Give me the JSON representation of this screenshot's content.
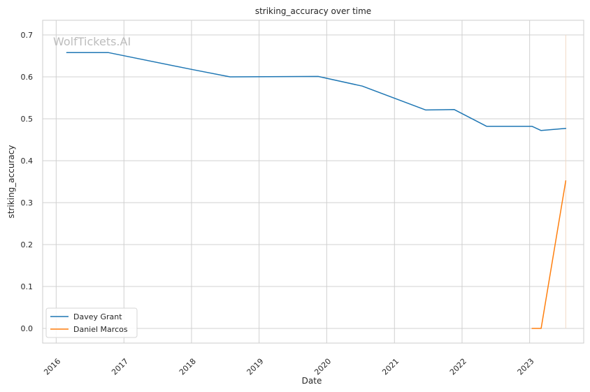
{
  "chart_data": {
    "type": "line",
    "title": "striking_accuracy over time",
    "xlabel": "Date",
    "ylabel": "striking_accuracy",
    "watermark": "WolfTickets.AI",
    "x_ticks": [
      "2016",
      "2017",
      "2018",
      "2019",
      "2020",
      "2021",
      "2022",
      "2023"
    ],
    "y_ticks": [
      "0.0",
      "0.1",
      "0.2",
      "0.3",
      "0.4",
      "0.5",
      "0.6",
      "0.7"
    ],
    "xlim": [
      "2015-10-20",
      "2023-10-20"
    ],
    "ylim": [
      -0.035,
      0.735
    ],
    "grid": true,
    "legend_position": "lower-left",
    "series": [
      {
        "name": "Davey Grant",
        "color": "#1f77b4",
        "points": [
          {
            "x": "2016-02-27",
            "y": 0.658
          },
          {
            "x": "2016-10-08",
            "y": 0.658
          },
          {
            "x": "2017-12-30",
            "y": 0.618
          },
          {
            "x": "2018-07-28",
            "y": 0.6
          },
          {
            "x": "2019-11-16",
            "y": 0.601
          },
          {
            "x": "2020-07-11",
            "y": 0.578
          },
          {
            "x": "2021-06-19",
            "y": 0.521
          },
          {
            "x": "2021-11-20",
            "y": 0.522
          },
          {
            "x": "2022-05-14",
            "y": 0.482
          },
          {
            "x": "2023-01-14",
            "y": 0.482
          },
          {
            "x": "2023-03-04",
            "y": 0.472
          },
          {
            "x": "2023-07-15",
            "y": 0.477
          }
        ]
      },
      {
        "name": "Daniel Marcos",
        "color": "#ff7f0e",
        "points": [
          {
            "x": "2023-01-14",
            "y": 0.0
          },
          {
            "x": "2023-03-04",
            "y": 0.0
          },
          {
            "x": "2023-07-15",
            "y": 0.352
          }
        ]
      }
    ],
    "marker_line": {
      "x": "2023-07-15",
      "y_from": 0.0,
      "y_to": 0.7,
      "color": "#f2d9c4"
    }
  }
}
